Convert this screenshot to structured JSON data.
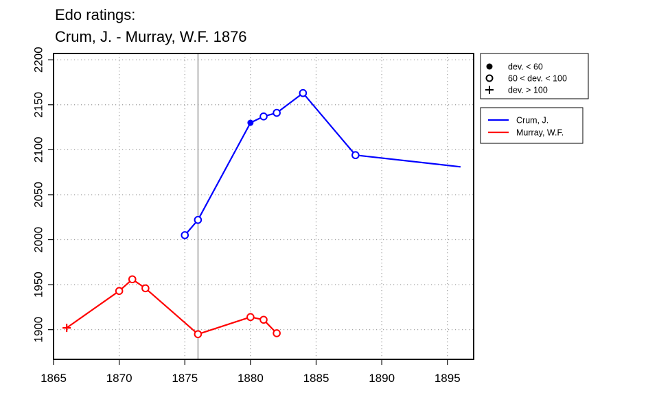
{
  "chart_data": {
    "type": "line",
    "title_line1": "Edo ratings:",
    "title_line2": "Crum, J. - Murray, W.F. 1876",
    "xlim": [
      1865,
      1897
    ],
    "ylim": [
      1867,
      2207
    ],
    "x_ticks": [
      1865,
      1870,
      1875,
      1880,
      1885,
      1890,
      1895
    ],
    "y_ticks": [
      1900,
      1950,
      2000,
      2050,
      2100,
      2150,
      2200
    ],
    "grid": true,
    "reference_line_x": 1876,
    "point_legend": {
      "placement": "top-right",
      "entries": [
        {
          "marker": "filled-circle",
          "label": "dev. < 60"
        },
        {
          "marker": "open-circle",
          "label": "60 < dev. < 100"
        },
        {
          "marker": "plus",
          "label": "dev. > 100"
        }
      ]
    },
    "series": [
      {
        "name": "Crum, J.",
        "color": "#0000ff",
        "points": [
          {
            "x": 1875,
            "y": 2005,
            "marker": "open-circle"
          },
          {
            "x": 1876,
            "y": 2022,
            "marker": "open-circle"
          },
          {
            "x": 1880,
            "y": 2130,
            "marker": "filled-circle"
          },
          {
            "x": 1881,
            "y": 2137,
            "marker": "open-circle"
          },
          {
            "x": 1882,
            "y": 2141,
            "marker": "open-circle"
          },
          {
            "x": 1884,
            "y": 2163,
            "marker": "open-circle"
          },
          {
            "x": 1888,
            "y": 2094,
            "marker": "open-circle"
          },
          {
            "x": 1896,
            "y": 2081,
            "marker": "none"
          }
        ]
      },
      {
        "name": "Murray, W.F.",
        "color": "#ff0000",
        "points": [
          {
            "x": 1866,
            "y": 1902,
            "marker": "plus"
          },
          {
            "x": 1870,
            "y": 1943,
            "marker": "open-circle"
          },
          {
            "x": 1871,
            "y": 1956,
            "marker": "open-circle"
          },
          {
            "x": 1872,
            "y": 1946,
            "marker": "open-circle"
          },
          {
            "x": 1876,
            "y": 1895,
            "marker": "open-circle"
          },
          {
            "x": 1880,
            "y": 1914,
            "marker": "open-circle"
          },
          {
            "x": 1881,
            "y": 1911,
            "marker": "open-circle"
          },
          {
            "x": 1882,
            "y": 1896,
            "marker": "open-circle"
          }
        ]
      }
    ]
  }
}
